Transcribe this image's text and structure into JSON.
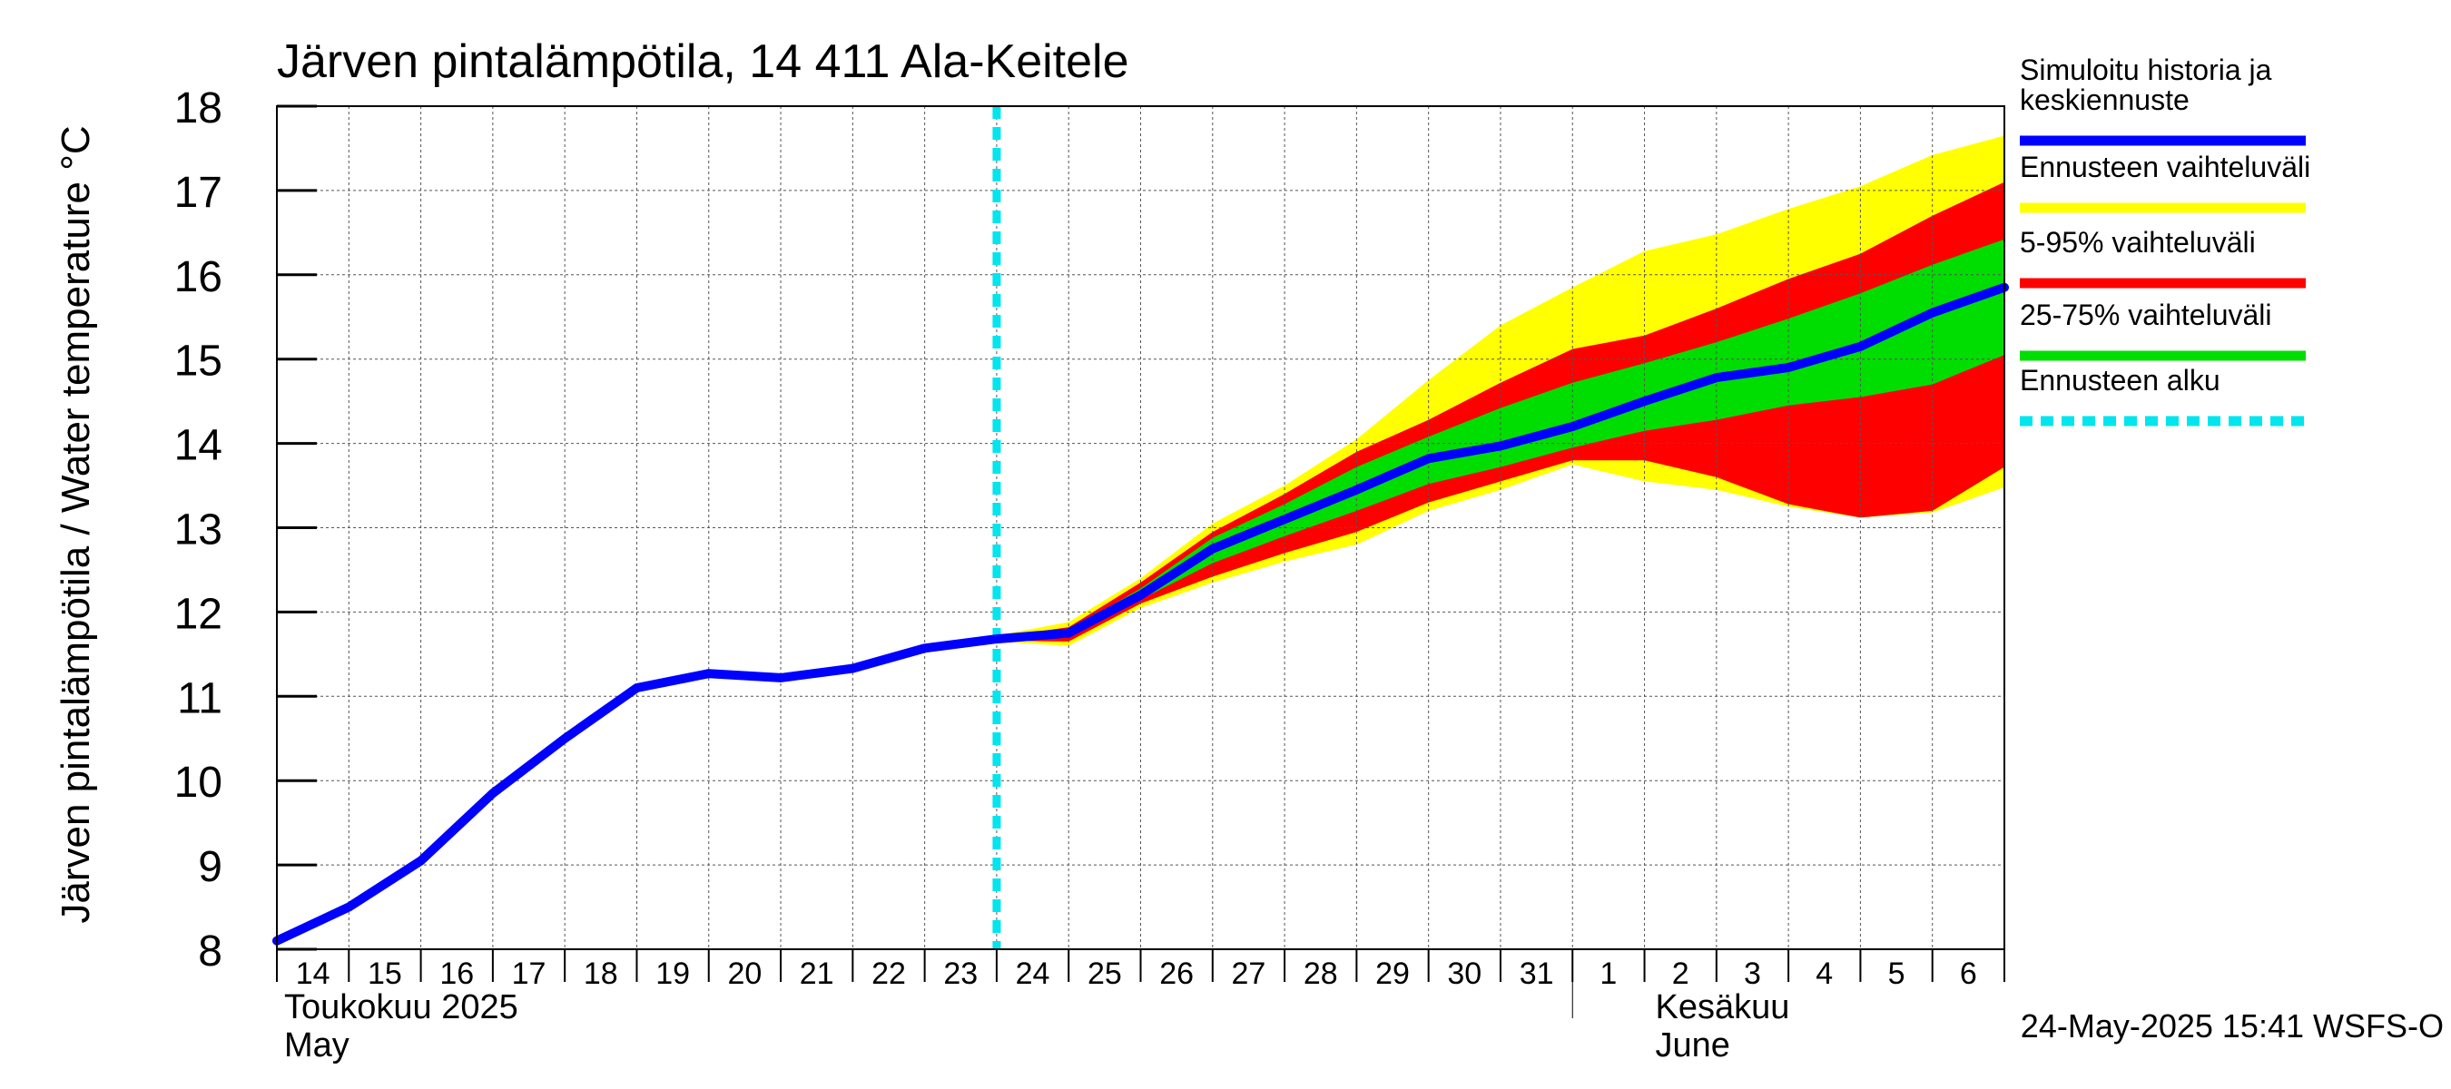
{
  "chart_data": {
    "type": "area",
    "title": "Järven pintalämpötila, 14 411 Ala-Keitele",
    "ylabel": "Järven pintalämpötila / Water temperature °C",
    "xlabel": "",
    "ylim": [
      8,
      18
    ],
    "yticks": [
      "8",
      "9",
      "10",
      "11",
      "12",
      "13",
      "14",
      "15",
      "16",
      "17",
      "18"
    ],
    "x_range": [
      0,
      24
    ],
    "day_ticks": [
      "14",
      "15",
      "16",
      "17",
      "18",
      "19",
      "20",
      "21",
      "22",
      "23",
      "24",
      "25",
      "26",
      "27",
      "28",
      "29",
      "30",
      "31",
      "1",
      "2",
      "3",
      "4",
      "5",
      "6"
    ],
    "month_labels": [
      {
        "x": 0,
        "line1": "Toukokuu  2025",
        "line2": "May"
      },
      {
        "x": 19,
        "line1": "Kesäkuu",
        "line2": "June"
      }
    ],
    "month_divider_x": 18,
    "forecast_start_x": 10,
    "grid": true,
    "legend_position": "right",
    "legend": [
      {
        "label": "Simuloitu historia ja keskiennuste",
        "lines": [
          "Simuloitu historia ja",
          "keskiennuste"
        ],
        "color": "#0000ff",
        "style": "solid"
      },
      {
        "label": "Ennusteen vaihteluväli",
        "lines": [
          "Ennusteen vaihteluväli"
        ],
        "color": "#ffff00",
        "style": "solid"
      },
      {
        "label": "5-95% vaihteluväli",
        "lines": [
          "5-95% vaihteluväli"
        ],
        "color": "#ff0000",
        "style": "solid"
      },
      {
        "label": "25-75% vaihteluväli",
        "lines": [
          "25-75% vaihteluväli"
        ],
        "color": "#00dd00",
        "style": "solid"
      },
      {
        "label": "Ennusteen alku",
        "lines": [
          "Ennusteen alku"
        ],
        "color": "#00e5ee",
        "style": "dashed"
      }
    ],
    "series": [
      {
        "name": "Simuloitu historia ja keskiennuste",
        "color": "#0000ff",
        "x": [
          0,
          1,
          2,
          3,
          4,
          5,
          6,
          7,
          8,
          9,
          10,
          11,
          12,
          13,
          14,
          15,
          16,
          17,
          18,
          19,
          20,
          21,
          22,
          23,
          24
        ],
        "values": [
          8.1,
          8.5,
          9.05,
          9.85,
          10.5,
          11.1,
          11.27,
          11.22,
          11.33,
          11.57,
          11.68,
          11.75,
          12.2,
          12.75,
          13.1,
          13.45,
          13.82,
          13.97,
          14.2,
          14.5,
          14.78,
          14.9,
          15.15,
          15.55,
          15.85
        ]
      }
    ],
    "bands": [
      {
        "name": "Ennusteen vaihteluväli",
        "color": "#ffff00",
        "x": [
          10,
          11,
          12,
          13,
          14,
          15,
          16,
          17,
          18,
          19,
          20,
          21,
          22,
          23,
          24
        ],
        "upper": [
          11.72,
          11.88,
          12.4,
          13.05,
          13.5,
          14.05,
          14.75,
          15.4,
          15.85,
          16.28,
          16.48,
          16.78,
          17.05,
          17.42,
          17.65
        ],
        "lower": [
          11.65,
          11.6,
          12.05,
          12.35,
          12.6,
          12.8,
          13.2,
          13.45,
          13.75,
          13.55,
          13.45,
          13.25,
          13.12,
          13.18,
          13.48
        ]
      },
      {
        "name": "5-95% vaihteluväli",
        "color": "#ff0000",
        "x": [
          10,
          11,
          12,
          13,
          14,
          15,
          16,
          17,
          18,
          19,
          20,
          21,
          22,
          23,
          24
        ],
        "upper": [
          11.7,
          11.82,
          12.35,
          12.95,
          13.4,
          13.9,
          14.28,
          14.72,
          15.12,
          15.28,
          15.6,
          15.95,
          16.25,
          16.7,
          17.1
        ],
        "lower": [
          11.66,
          11.65,
          12.1,
          12.42,
          12.7,
          12.95,
          13.3,
          13.55,
          13.8,
          13.8,
          13.6,
          13.28,
          13.12,
          13.2,
          13.72
        ]
      },
      {
        "name": "25-75% vaihteluväli",
        "color": "#00dd00",
        "x": [
          10,
          11,
          12,
          13,
          14,
          15,
          16,
          17,
          18,
          19,
          20,
          21,
          22,
          23,
          24
        ],
        "upper": [
          11.69,
          11.78,
          12.28,
          12.88,
          13.28,
          13.72,
          14.08,
          14.42,
          14.72,
          14.95,
          15.2,
          15.48,
          15.78,
          16.12,
          16.42
        ],
        "lower": [
          11.67,
          11.7,
          12.15,
          12.58,
          12.9,
          13.2,
          13.52,
          13.72,
          13.95,
          14.15,
          14.28,
          14.45,
          14.55,
          14.7,
          15.05
        ]
      }
    ],
    "timestamp": "24-May-2025 15:41 WSFS-O"
  }
}
